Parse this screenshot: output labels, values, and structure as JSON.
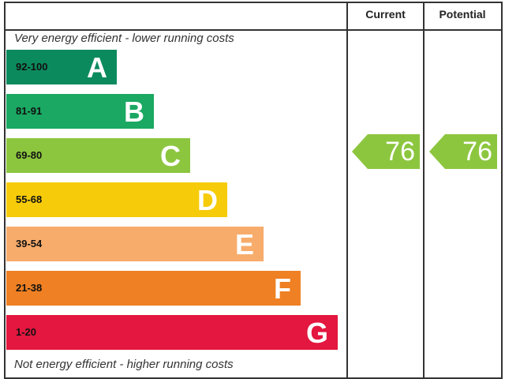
{
  "chart_data": {
    "type": "bar",
    "header": {
      "current": "Current",
      "potential": "Potential"
    },
    "top_note": "Very energy efficient - lower running costs",
    "bottom_note": "Not energy efficient - higher running costs",
    "bands": [
      {
        "letter": "A",
        "range": "92-100",
        "color": "#0b8a5e"
      },
      {
        "letter": "B",
        "range": "81-91",
        "color": "#1aa862"
      },
      {
        "letter": "C",
        "range": "69-80",
        "color": "#8cc63f"
      },
      {
        "letter": "D",
        "range": "55-68",
        "color": "#f6cc0a"
      },
      {
        "letter": "E",
        "range": "39-54",
        "color": "#f7ac6b"
      },
      {
        "letter": "F",
        "range": "21-38",
        "color": "#ef8023"
      },
      {
        "letter": "G",
        "range": "1-20",
        "color": "#e3173f"
      }
    ],
    "current": {
      "value": "76",
      "band": "C",
      "color": "#8cc63f"
    },
    "potential": {
      "value": "76",
      "band": "C",
      "color": "#8cc63f"
    }
  }
}
